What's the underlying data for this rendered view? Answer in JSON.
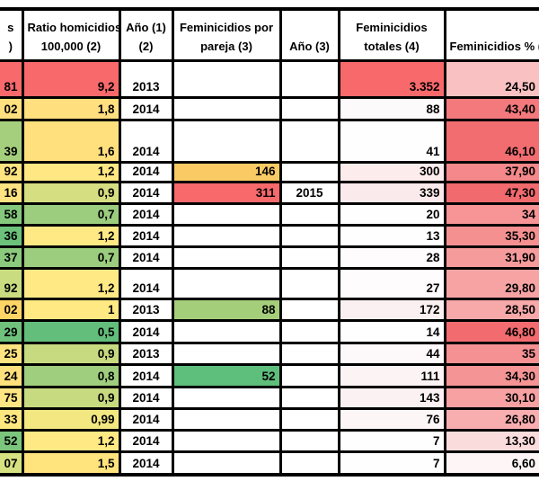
{
  "app": {
    "type": "spreadsheet-table",
    "background": "#FFFFFF",
    "grid_color": "#000000",
    "status_colors": {
      "red": "#F8696B",
      "yellow": "#FFEB84",
      "green": "#63BE7B",
      "white": "#FFFFFF"
    }
  },
  "table": {
    "columns": [
      {
        "id": "homicidios",
        "header_lines": [
          "s",
          ")"
        ],
        "align": "right",
        "note": "column clipped at left edge of screenshot"
      },
      {
        "id": "ratio",
        "header_lines": [
          "Ratio homicidios",
          "100,000 (2)"
        ],
        "align": "right"
      },
      {
        "id": "ano1",
        "header_lines": [
          "Año (1)",
          "(2)"
        ],
        "align": "center"
      },
      {
        "id": "pareja",
        "header_lines": [
          "Feminicidios por",
          "pareja (3)"
        ],
        "align": "right"
      },
      {
        "id": "ano3",
        "header_lines": [
          "Año (3)"
        ],
        "align": "center"
      },
      {
        "id": "totales",
        "header_lines": [
          "Feminicidios",
          "totales (4)"
        ],
        "align": "right"
      },
      {
        "id": "pct",
        "header_lines": [
          "Feminicidios % (4"
        ],
        "align": "right",
        "note": "header clipped at right edge of screenshot"
      }
    ],
    "rows": [
      {
        "cells": [
          {
            "v": "81",
            "bg": "#F8696B"
          },
          {
            "v": "9,2",
            "bg": "#F8696B"
          },
          {
            "v": "2013",
            "bg": "#FFFFFF"
          },
          {
            "v": "",
            "bg": "#FFFFFF"
          },
          {
            "v": "",
            "bg": "#FFFFFF"
          },
          {
            "v": "3.352",
            "bg": "#F8696B"
          },
          {
            "v": "24,50",
            "bg": "#F9C1C2"
          }
        ]
      },
      {
        "cells": [
          {
            "v": "02",
            "bg": "#FFE07E"
          },
          {
            "v": "1,8",
            "bg": "#FFDF7E"
          },
          {
            "v": "2014",
            "bg": "#FFFFFF"
          },
          {
            "v": "",
            "bg": "#FFFFFF"
          },
          {
            "v": "",
            "bg": "#FFFFFF"
          },
          {
            "v": "88",
            "bg": "#FDFAFB"
          },
          {
            "v": "43,40",
            "bg": "#F3797C"
          }
        ]
      },
      {
        "cells": [
          {
            "v": "39",
            "bg": "#A6CF7D"
          },
          {
            "v": "1,6",
            "bg": "#FFE07D"
          },
          {
            "v": "2014",
            "bg": "#FFFFFF"
          },
          {
            "v": "",
            "bg": "#FFFFFF"
          },
          {
            "v": "",
            "bg": "#FFFFFF"
          },
          {
            "v": "41",
            "bg": "#FEFEFE"
          },
          {
            "v": "46,10",
            "bg": "#F26D70"
          }
        ]
      },
      {
        "cells": [
          {
            "v": "92",
            "bg": "#FFE580"
          },
          {
            "v": "1,2",
            "bg": "#FFE883"
          },
          {
            "v": "2014",
            "bg": "#FFFFFF"
          },
          {
            "v": "146",
            "bg": "#FACB64"
          },
          {
            "v": "",
            "bg": "#FFFFFF"
          },
          {
            "v": "300",
            "bg": "#FCECEC"
          },
          {
            "v": "37,90",
            "bg": "#F4888A"
          }
        ]
      },
      {
        "cells": [
          {
            "v": "16",
            "bg": "#FFE481"
          },
          {
            "v": "0,9",
            "bg": "#D5DE81"
          },
          {
            "v": "2014",
            "bg": "#FFFFFF"
          },
          {
            "v": "311",
            "bg": "#F8696B"
          },
          {
            "v": "2015",
            "bg": "#FFFFFF"
          },
          {
            "v": "339",
            "bg": "#FBEAEB"
          },
          {
            "v": "47,30",
            "bg": "#F16A6E"
          }
        ]
      },
      {
        "cells": [
          {
            "v": "58",
            "bg": "#85C87C"
          },
          {
            "v": "0,7",
            "bg": "#9CCD7E"
          },
          {
            "v": "2014",
            "bg": "#FFFFFF"
          },
          {
            "v": "",
            "bg": "#FFFFFF"
          },
          {
            "v": "",
            "bg": "#FFFFFF"
          },
          {
            "v": "20",
            "bg": "#FEFEFF"
          },
          {
            "v": "34",
            "bg": "#F69496"
          }
        ]
      },
      {
        "cells": [
          {
            "v": "36",
            "bg": "#6CC17B"
          },
          {
            "v": "1,2",
            "bg": "#FFE984"
          },
          {
            "v": "2014",
            "bg": "#FFFFFF"
          },
          {
            "v": "",
            "bg": "#FFFFFF"
          },
          {
            "v": "",
            "bg": "#FFFFFF"
          },
          {
            "v": "13",
            "bg": "#FEFEFF"
          },
          {
            "v": "35,30",
            "bg": "#F59091"
          }
        ]
      },
      {
        "cells": [
          {
            "v": "37",
            "bg": "#8BC97D"
          },
          {
            "v": "0,7",
            "bg": "#9CCD7E"
          },
          {
            "v": "2014",
            "bg": "#FFFFFF"
          },
          {
            "v": "",
            "bg": "#FFFFFF"
          },
          {
            "v": "",
            "bg": "#FFFFFF"
          },
          {
            "v": "28",
            "bg": "#FEFCFD"
          },
          {
            "v": "31,90",
            "bg": "#F69B9C"
          }
        ]
      },
      {
        "cells": [
          {
            "v": "92",
            "bg": "#C9DC80"
          },
          {
            "v": "1,2",
            "bg": "#FFE984"
          },
          {
            "v": "2014",
            "bg": "#FFFFFF"
          },
          {
            "v": "",
            "bg": "#FFFFFF"
          },
          {
            "v": "",
            "bg": "#FFFFFF"
          },
          {
            "v": "27",
            "bg": "#FEFCFD"
          },
          {
            "v": "29,80",
            "bg": "#F7A3A4"
          }
        ]
      },
      {
        "cells": [
          {
            "v": "02",
            "bg": "#FFD666"
          },
          {
            "v": "1",
            "bg": "#FEE982"
          },
          {
            "v": "2013",
            "bg": "#FFFFFF"
          },
          {
            "v": "88",
            "bg": "#A5CE7B"
          },
          {
            "v": "",
            "bg": "#FFFFFF"
          },
          {
            "v": "172",
            "bg": "#FBF0F1"
          },
          {
            "v": "28,50",
            "bg": "#F7A8A9"
          }
        ]
      },
      {
        "cells": [
          {
            "v": "29",
            "bg": "#6FC27B"
          },
          {
            "v": "0,5",
            "bg": "#63BE7B"
          },
          {
            "v": "2014",
            "bg": "#FFFFFF"
          },
          {
            "v": "",
            "bg": "#FFFFFF"
          },
          {
            "v": "",
            "bg": "#FFFFFF"
          },
          {
            "v": "14",
            "bg": "#FEFEFE"
          },
          {
            "v": "46,80",
            "bg": "#F26B6F"
          }
        ]
      },
      {
        "cells": [
          {
            "v": "25",
            "bg": "#FFE380"
          },
          {
            "v": "0,9",
            "bg": "#C7DA80"
          },
          {
            "v": "2013",
            "bg": "#FFFFFF"
          },
          {
            "v": "",
            "bg": "#FFFFFF"
          },
          {
            "v": "",
            "bg": "#FFFFFF"
          },
          {
            "v": "44",
            "bg": "#FDF8F9"
          },
          {
            "v": "35",
            "bg": "#F59193"
          }
        ]
      },
      {
        "cells": [
          {
            "v": "24",
            "bg": "#FFE07C"
          },
          {
            "v": "0,8",
            "bg": "#9FCE7E"
          },
          {
            "v": "2014",
            "bg": "#FFFFFF"
          },
          {
            "v": "52",
            "bg": "#5EBE7B"
          },
          {
            "v": "",
            "bg": "#FFFFFF"
          },
          {
            "v": "111",
            "bg": "#FCF3F4"
          },
          {
            "v": "34,30",
            "bg": "#F59495"
          }
        ]
      },
      {
        "cells": [
          {
            "v": "75",
            "bg": "#FFE583"
          },
          {
            "v": "0,9",
            "bg": "#C7DA80"
          },
          {
            "v": "2014",
            "bg": "#FFFFFF"
          },
          {
            "v": "",
            "bg": "#FFFFFF"
          },
          {
            "v": "",
            "bg": "#FFFFFF"
          },
          {
            "v": "143",
            "bg": "#FBF1F2"
          },
          {
            "v": "30,10",
            "bg": "#F7A1A2"
          }
        ]
      },
      {
        "cells": [
          {
            "v": "33",
            "bg": "#FFE780"
          },
          {
            "v": "0,99",
            "bg": "#F3E781"
          },
          {
            "v": "2014",
            "bg": "#FFFFFF"
          },
          {
            "v": "",
            "bg": "#FFFFFF"
          },
          {
            "v": "",
            "bg": "#FFFFFF"
          },
          {
            "v": "76",
            "bg": "#FDF6F7"
          },
          {
            "v": "26,80",
            "bg": "#F8AEAF"
          }
        ]
      },
      {
        "cells": [
          {
            "v": "52",
            "bg": "#7CC57D"
          },
          {
            "v": "1,2",
            "bg": "#FFE984"
          },
          {
            "v": "2014",
            "bg": "#FFFFFF"
          },
          {
            "v": "",
            "bg": "#FFFFFF"
          },
          {
            "v": "",
            "bg": "#FFFFFF"
          },
          {
            "v": "7",
            "bg": "#FEFEFE"
          },
          {
            "v": "13,30",
            "bg": "#FBDCDC"
          }
        ]
      },
      {
        "cells": [
          {
            "v": "07",
            "bg": "#D6E181"
          },
          {
            "v": "1,5",
            "bg": "#FFE37D"
          },
          {
            "v": "2014",
            "bg": "#FFFFFF"
          },
          {
            "v": "",
            "bg": "#FFFFFF"
          },
          {
            "v": "",
            "bg": "#FFFFFF"
          },
          {
            "v": "7",
            "bg": "#FEFEFE"
          },
          {
            "v": "6,60",
            "bg": "#FDF5F6"
          }
        ]
      }
    ]
  }
}
